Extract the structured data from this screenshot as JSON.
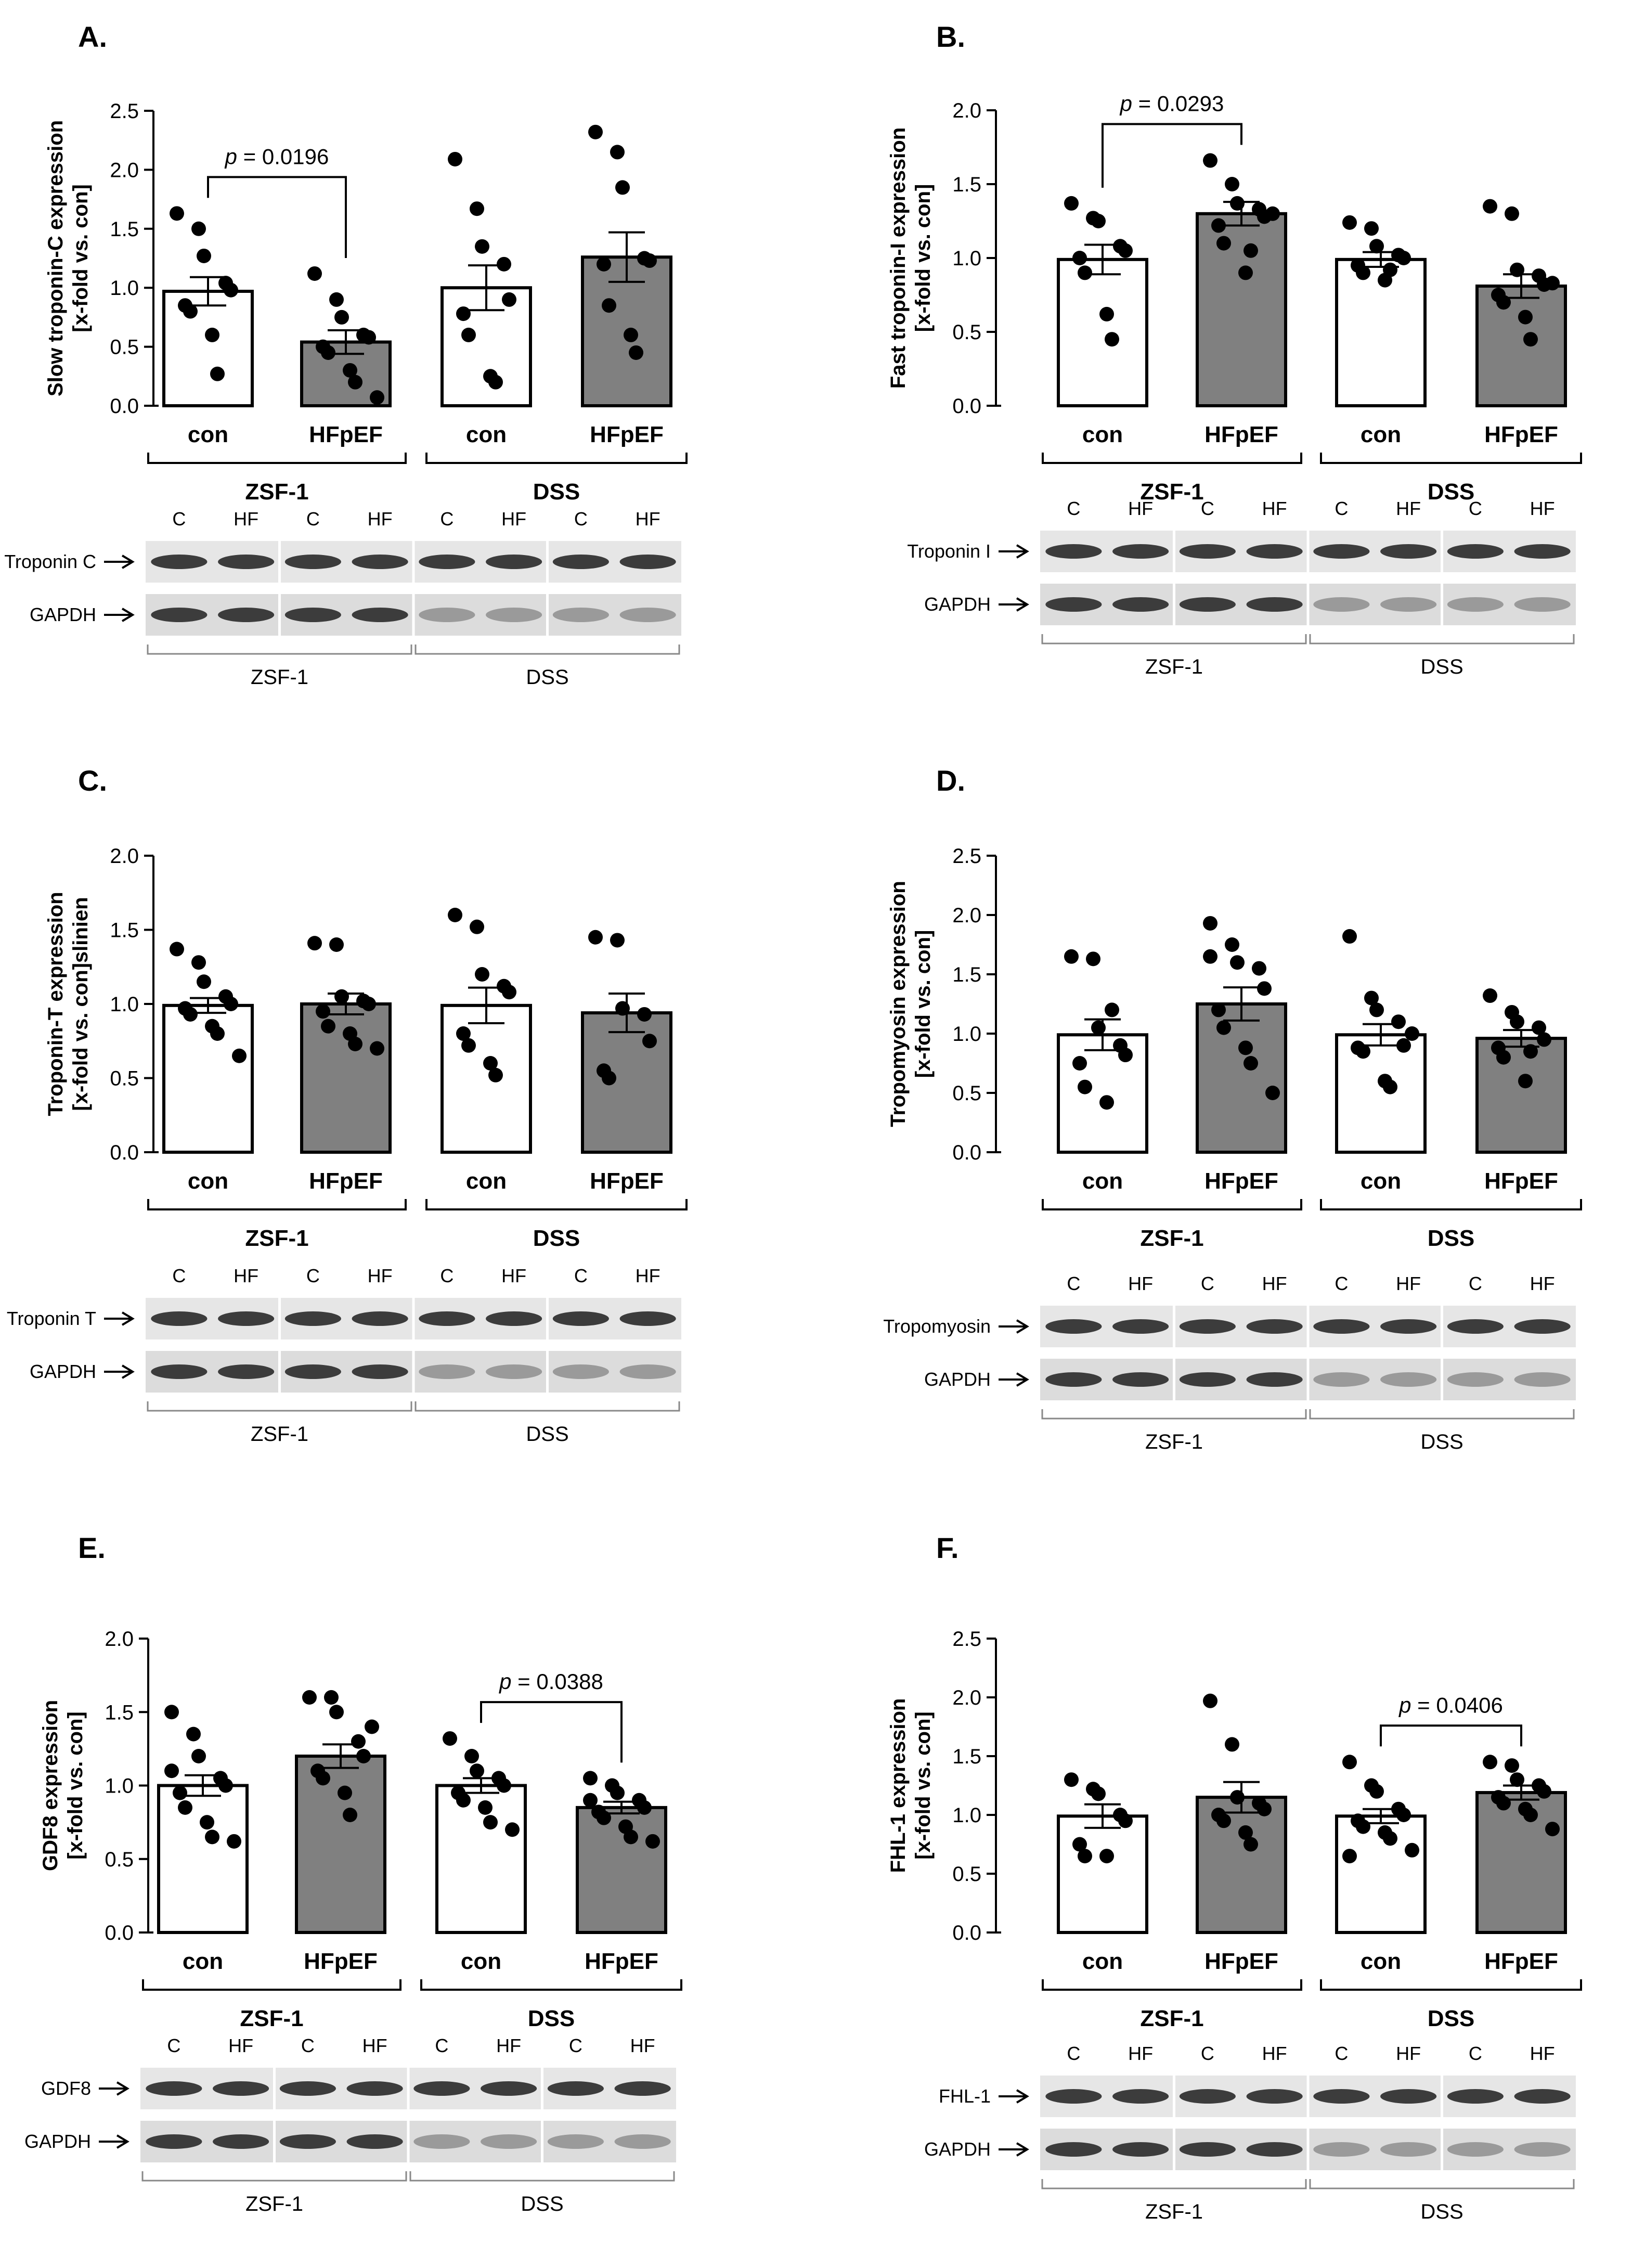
{
  "chart_data": [
    {
      "panel": "A.",
      "type": "bar",
      "ylabel": [
        "Slow troponin-C expression",
        "[x-fold vs. con]"
      ],
      "ylim": [
        0,
        2.5
      ],
      "yticks": [
        "0.0",
        "0.5",
        "1.0",
        "1.5",
        "2.0",
        "2.5"
      ],
      "categories": [
        "con",
        "HFpEF",
        "con",
        "HFpEF"
      ],
      "groups": [
        "ZSF-1",
        "DSS"
      ],
      "colors": [
        "#ffffff",
        "#808080",
        "#ffffff",
        "#808080"
      ],
      "values": [
        0.97,
        0.54,
        1.0,
        1.26
      ],
      "sem": [
        0.12,
        0.1,
        0.19,
        0.21
      ],
      "points": [
        [
          1.63,
          1.5,
          1.27,
          1.04,
          0.98,
          0.85,
          0.8,
          0.6,
          0.27
        ],
        [
          1.12,
          0.9,
          0.75,
          0.6,
          0.58,
          0.5,
          0.45,
          0.3,
          0.2,
          0.07
        ],
        [
          2.09,
          1.67,
          1.35,
          1.2,
          0.9,
          0.78,
          0.6,
          0.25,
          0.2
        ],
        [
          2.32,
          2.15,
          1.85,
          1.25,
          1.23,
          1.2,
          0.85,
          0.6,
          0.45
        ]
      ],
      "significance": {
        "between": [
          0,
          1
        ],
        "label": "p = 0.0196"
      },
      "blot": {
        "lanes": [
          "C",
          "HF",
          "C",
          "HF",
          "C",
          "HF",
          "C",
          "HF"
        ],
        "rows": [
          "Troponin C",
          "GAPDH"
        ],
        "groups": [
          "ZSF-1",
          "DSS"
        ]
      }
    },
    {
      "panel": "B.",
      "type": "bar",
      "ylabel": [
        "Fast troponin-I expression",
        "[x-fold vs. con]"
      ],
      "ylim": [
        0,
        2.0
      ],
      "yticks": [
        "0.0",
        "0.5",
        "1.0",
        "1.5",
        "2.0"
      ],
      "categories": [
        "con",
        "HFpEF",
        "con",
        "HFpEF"
      ],
      "groups": [
        "ZSF-1",
        "DSS"
      ],
      "colors": [
        "#ffffff",
        "#808080",
        "#ffffff",
        "#808080"
      ],
      "values": [
        0.99,
        1.3,
        0.99,
        0.81
      ],
      "sem": [
        0.1,
        0.08,
        0.05,
        0.08
      ],
      "points": [
        [
          1.37,
          1.27,
          1.25,
          1.08,
          1.05,
          1.0,
          0.9,
          0.62,
          0.45
        ],
        [
          1.66,
          1.5,
          1.37,
          1.33,
          1.28,
          1.22,
          1.1,
          0.9,
          1.05,
          1.3
        ],
        [
          1.24,
          1.2,
          1.08,
          1.02,
          1.0,
          0.95,
          0.9,
          0.85,
          0.92
        ],
        [
          1.35,
          1.3,
          0.92,
          0.88,
          0.82,
          0.75,
          0.7,
          0.6,
          0.45,
          0.83
        ]
      ],
      "significance": {
        "between": [
          0,
          1
        ],
        "label": "p = 0.0293"
      },
      "blot": {
        "lanes": [
          "C",
          "HF",
          "C",
          "HF",
          "C",
          "HF",
          "C",
          "HF"
        ],
        "rows": [
          "Troponin I",
          "GAPDH"
        ],
        "groups": [
          "ZSF-1",
          "DSS"
        ]
      }
    },
    {
      "panel": "C.",
      "type": "bar",
      "ylabel": [
        "Troponin-T expression",
        "[x-fold vs. con]slinien"
      ],
      "ylim": [
        0,
        2.0
      ],
      "yticks": [
        "0.0",
        "0.5",
        "1.0",
        "1.5",
        "2.0"
      ],
      "categories": [
        "con",
        "HFpEF",
        "con",
        "HFpEF"
      ],
      "groups": [
        "ZSF-1",
        "DSS"
      ],
      "colors": [
        "#ffffff",
        "#808080",
        "#ffffff",
        "#808080"
      ],
      "values": [
        0.99,
        1.0,
        0.99,
        0.94
      ],
      "sem": [
        0.05,
        0.07,
        0.12,
        0.13
      ],
      "points": [
        [
          1.37,
          1.28,
          1.15,
          1.05,
          1.0,
          0.97,
          0.93,
          0.85,
          0.8,
          0.65
        ],
        [
          1.41,
          1.4,
          1.05,
          1.02,
          1.0,
          0.95,
          0.85,
          0.8,
          0.73,
          0.7
        ],
        [
          1.6,
          1.52,
          1.2,
          1.12,
          1.08,
          0.8,
          0.72,
          0.6,
          0.52
        ],
        [
          1.45,
          1.43,
          0.97,
          0.93,
          0.75,
          0.55,
          0.5
        ]
      ],
      "significance": null,
      "blot": {
        "lanes": [
          "C",
          "HF",
          "C",
          "HF",
          "C",
          "HF",
          "C",
          "HF"
        ],
        "rows": [
          "Troponin T",
          "GAPDH"
        ],
        "groups": [
          "ZSF-1",
          "DSS"
        ]
      }
    },
    {
      "panel": "D.",
      "type": "bar",
      "ylabel": [
        "Tropomyosin expression",
        "[x-fold vs. con]"
      ],
      "ylim": [
        0,
        2.5
      ],
      "yticks": [
        "0.0",
        "0.5",
        "1.0",
        "1.5",
        "2.0",
        "2.5"
      ],
      "categories": [
        "con",
        "HFpEF",
        "con",
        "HFpEF"
      ],
      "groups": [
        "ZSF-1",
        "DSS"
      ],
      "colors": [
        "#ffffff",
        "#808080",
        "#ffffff",
        "#808080"
      ],
      "values": [
        0.99,
        1.25,
        0.99,
        0.96
      ],
      "sem": [
        0.13,
        0.14,
        0.09,
        0.07
      ],
      "points": [
        [
          1.65,
          1.63,
          1.05,
          0.9,
          0.82,
          0.75,
          0.55,
          0.42,
          1.2
        ],
        [
          1.93,
          1.75,
          1.6,
          1.55,
          1.38,
          1.2,
          1.05,
          0.88,
          0.75,
          0.5,
          1.65
        ],
        [
          1.82,
          1.3,
          1.2,
          1.1,
          0.9,
          0.88,
          0.85,
          0.6,
          0.55,
          1.0
        ],
        [
          1.32,
          1.18,
          1.1,
          1.05,
          0.95,
          0.88,
          0.8,
          0.6,
          0.85
        ]
      ],
      "significance": null,
      "blot": {
        "lanes": [
          "C",
          "HF",
          "C",
          "HF",
          "C",
          "HF",
          "C",
          "HF"
        ],
        "rows": [
          "Tropomyosin",
          "GAPDH"
        ],
        "groups": [
          "ZSF-1",
          "DSS"
        ]
      }
    },
    {
      "panel": "E.",
      "type": "bar",
      "ylabel": [
        "GDF8 expression",
        "[x-fold vs. con]"
      ],
      "ylim": [
        0,
        2.0
      ],
      "yticks": [
        "0.0",
        "0.5",
        "1.0",
        "1.5",
        "2.0"
      ],
      "categories": [
        "con",
        "HFpEF",
        "con",
        "HFpEF"
      ],
      "groups": [
        "ZSF-1",
        "DSS"
      ],
      "colors": [
        "#ffffff",
        "#808080",
        "#ffffff",
        "#808080"
      ],
      "values": [
        1.0,
        1.2,
        1.0,
        0.85
      ],
      "sem": [
        0.07,
        0.08,
        0.05,
        0.04
      ],
      "points": [
        [
          1.5,
          1.35,
          1.2,
          1.05,
          1.0,
          0.95,
          0.85,
          0.75,
          0.65,
          0.62,
          1.1
        ],
        [
          1.6,
          1.6,
          1.5,
          1.3,
          1.2,
          1.1,
          1.05,
          0.95,
          0.8,
          1.4
        ],
        [
          1.32,
          1.2,
          1.1,
          1.05,
          1.0,
          0.95,
          0.9,
          0.85,
          0.75,
          0.7
        ],
        [
          1.05,
          1.0,
          0.95,
          0.9,
          0.85,
          0.82,
          0.78,
          0.72,
          0.65,
          0.62,
          0.9
        ]
      ],
      "significance": {
        "between": [
          2,
          3
        ],
        "label": "p = 0.0388"
      },
      "blot": {
        "lanes": [
          "C",
          "HF",
          "C",
          "HF",
          "C",
          "HF",
          "C",
          "HF"
        ],
        "rows": [
          "GDF8",
          "GAPDH"
        ],
        "groups": [
          "ZSF-1",
          "DSS"
        ]
      }
    },
    {
      "panel": "F.",
      "type": "bar",
      "ylabel": [
        "FHL-1 expression",
        "[x-fold vs. con]"
      ],
      "ylim": [
        0,
        2.5
      ],
      "yticks": [
        "0.0",
        "0.5",
        "1.0",
        "1.5",
        "2.0",
        "2.5"
      ],
      "categories": [
        "con",
        "HFpEF",
        "con",
        "HFpEF"
      ],
      "groups": [
        "ZSF-1",
        "DSS"
      ],
      "colors": [
        "#ffffff",
        "#808080",
        "#ffffff",
        "#808080"
      ],
      "values": [
        0.99,
        1.15,
        0.99,
        1.19
      ],
      "sem": [
        0.1,
        0.13,
        0.06,
        0.06
      ],
      "points": [
        [
          1.3,
          1.22,
          1.18,
          1.0,
          0.95,
          0.75,
          0.65,
          0.65
        ],
        [
          1.97,
          1.6,
          1.15,
          1.1,
          1.05,
          1.0,
          0.95,
          0.85,
          0.75
        ],
        [
          1.45,
          1.25,
          1.2,
          1.05,
          1.0,
          0.95,
          0.9,
          0.85,
          0.8,
          0.7,
          0.65
        ],
        [
          1.45,
          1.42,
          1.3,
          1.25,
          1.2,
          1.15,
          1.1,
          1.05,
          1.0,
          0.88
        ]
      ],
      "significance": {
        "between": [
          2,
          3
        ],
        "label": "p = 0.0406"
      },
      "blot": {
        "lanes": [
          "C",
          "HF",
          "C",
          "HF",
          "C",
          "HF",
          "C",
          "HF"
        ],
        "rows": [
          "FHL-1",
          "GAPDH"
        ],
        "groups": [
          "ZSF-1",
          "DSS"
        ]
      }
    }
  ]
}
